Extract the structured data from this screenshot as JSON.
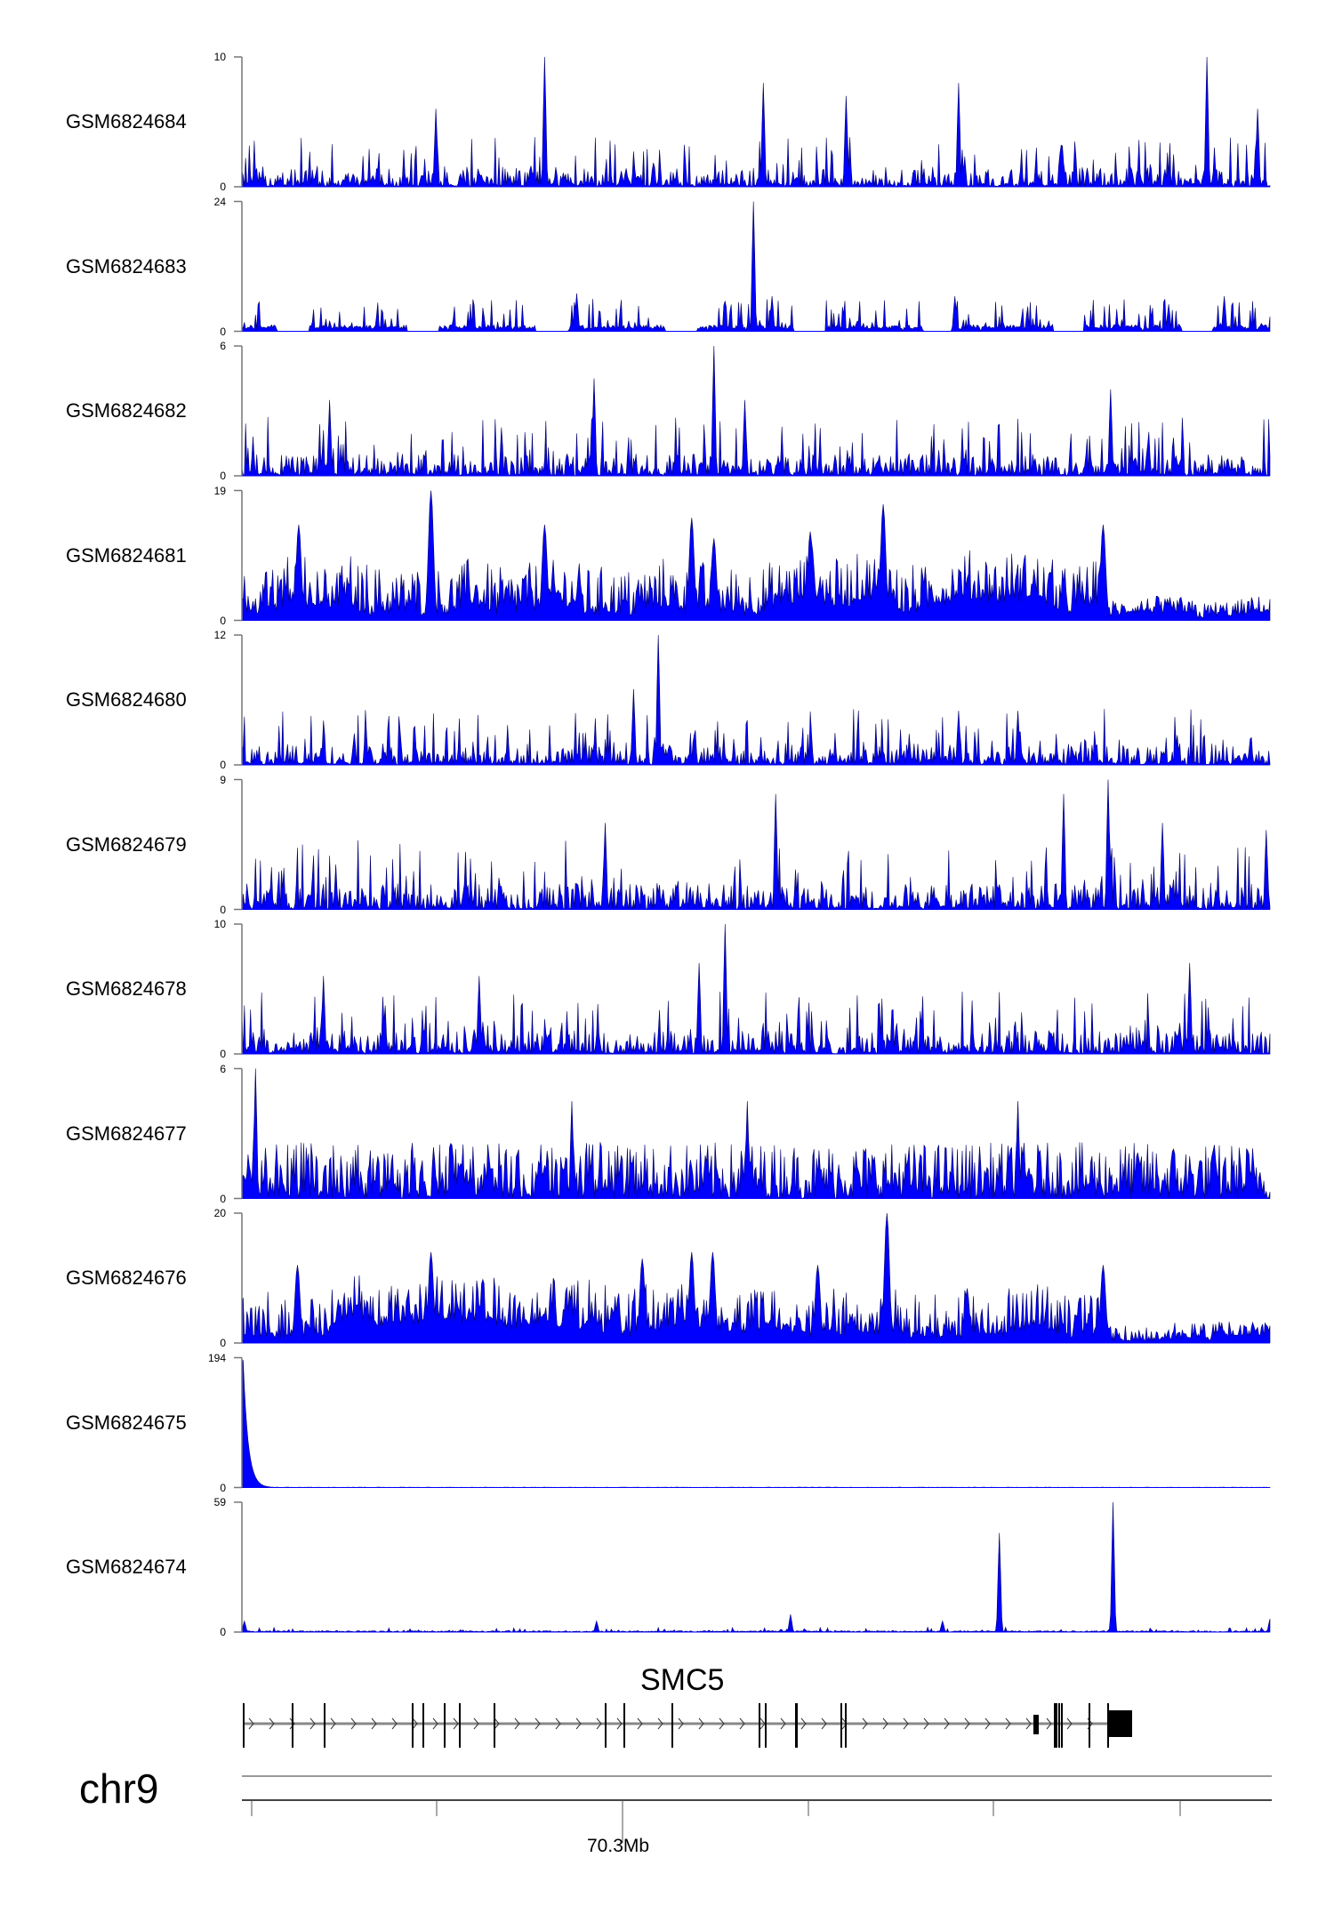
{
  "chart_data": {
    "type": "area",
    "title": "",
    "xlabel": "",
    "x_unit": "bin",
    "x_range": [
      0,
      832
    ],
    "color": "#0000FF",
    "outline_color": "#000066",
    "tracks": [
      {
        "name": "GSM6824684",
        "ylim": [
          0,
          10
        ],
        "ymin_label": "0",
        "ymax_label": "10",
        "style": "spiky",
        "noise": 2.4,
        "seed": 11,
        "peaks": [
          [
            245,
            10
          ],
          [
            781,
            10
          ],
          [
            422,
            8
          ],
          [
            580,
            8
          ],
          [
            822,
            6
          ],
          [
            489,
            7
          ],
          [
            157,
            6
          ]
        ]
      },
      {
        "name": "GSM6824683",
        "ylim": [
          0,
          24
        ],
        "ymin_label": "0",
        "ymax_label": "24",
        "style": "gappy",
        "noise": 6,
        "seed": 23,
        "peaks": [
          [
            414,
            24
          ],
          [
            271,
            7
          ],
          [
            429,
            6.5
          ],
          [
            577,
            6.5
          ],
          [
            795,
            6.5
          ],
          [
            750,
            5
          ]
        ]
      },
      {
        "name": "GSM6824682",
        "ylim": [
          0,
          6
        ],
        "ymin_label": "0",
        "ymax_label": "6",
        "style": "spiky",
        "noise": 1.7,
        "seed": 37,
        "peaks": [
          [
            382,
            6
          ],
          [
            285,
            4.5
          ],
          [
            71,
            3.5
          ],
          [
            703,
            4
          ],
          [
            407,
            3.5
          ]
        ]
      },
      {
        "name": "GSM6824681",
        "ylim": [
          0,
          19
        ],
        "ymin_label": "0",
        "ymax_label": "19",
        "style": "broad",
        "noise": 5.5,
        "seed": 41,
        "peaks": [
          [
            153,
            19
          ],
          [
            46,
            14
          ],
          [
            245,
            14
          ],
          [
            364,
            15
          ],
          [
            519,
            17
          ],
          [
            697,
            14
          ],
          [
            382,
            12
          ],
          [
            460,
            13
          ]
        ]
      },
      {
        "name": "GSM6824680",
        "ylim": [
          0,
          12
        ],
        "ymin_label": "0",
        "ymax_label": "12",
        "style": "spiky",
        "noise": 3.3,
        "seed": 53,
        "peaks": [
          [
            337,
            12
          ],
          [
            317,
            7
          ],
          [
            580,
            5
          ],
          [
            628,
            5
          ]
        ]
      },
      {
        "name": "GSM6824679",
        "ylim": [
          0,
          9
        ],
        "ymin_label": "0",
        "ymax_label": "9",
        "style": "spiky",
        "noise": 3,
        "seed": 67,
        "peaks": [
          [
            701,
            9
          ],
          [
            432,
            8
          ],
          [
            665,
            8
          ],
          [
            294,
            6
          ],
          [
            745,
            6
          ],
          [
            829,
            5.5
          ]
        ]
      },
      {
        "name": "GSM6824678",
        "ylim": [
          0,
          10
        ],
        "ymin_label": "0",
        "ymax_label": "10",
        "style": "spiky",
        "noise": 3,
        "seed": 71,
        "peaks": [
          [
            391,
            10
          ],
          [
            767,
            7
          ],
          [
            192,
            6
          ],
          [
            66,
            6
          ],
          [
            370,
            7
          ]
        ]
      },
      {
        "name": "GSM6824677",
        "ylim": [
          0,
          6
        ],
        "ymin_label": "0",
        "ymax_label": "6",
        "style": "dense",
        "noise": 2.6,
        "seed": 83,
        "peaks": [
          [
            11,
            6
          ],
          [
            267,
            4.5
          ],
          [
            628,
            4.5
          ],
          [
            409,
            4.5
          ]
        ]
      },
      {
        "name": "GSM6824676",
        "ylim": [
          0,
          20
        ],
        "ymin_label": "0",
        "ymax_label": "20",
        "style": "broad",
        "noise": 5.5,
        "seed": 97,
        "peaks": [
          [
            522,
            20
          ],
          [
            153,
            14
          ],
          [
            324,
            13
          ],
          [
            364,
            14
          ],
          [
            381,
            14
          ],
          [
            697,
            12
          ],
          [
            45,
            12
          ],
          [
            466,
            12
          ]
        ]
      },
      {
        "name": "GSM6824675",
        "ylim": [
          0,
          194
        ],
        "ymin_label": "0",
        "ymax_label": "194",
        "style": "decay",
        "noise": 1,
        "seed": 101,
        "peaks": [
          [
            1,
            190
          ]
        ]
      },
      {
        "name": "GSM6824674",
        "ylim": [
          0,
          59
        ],
        "ymin_label": "0",
        "ymax_label": "59",
        "style": "flat",
        "noise": 1.5,
        "seed": 113,
        "peaks": [
          [
            705,
            59
          ],
          [
            613,
            45
          ],
          [
            444,
            8
          ],
          [
            287,
            5
          ],
          [
            567,
            5
          ],
          [
            832,
            6
          ],
          [
            2,
            5
          ]
        ]
      }
    ]
  },
  "gene_track": {
    "gene_name": "SMC5",
    "chromosome": "chr9",
    "axis_label": "70.3Mb"
  }
}
